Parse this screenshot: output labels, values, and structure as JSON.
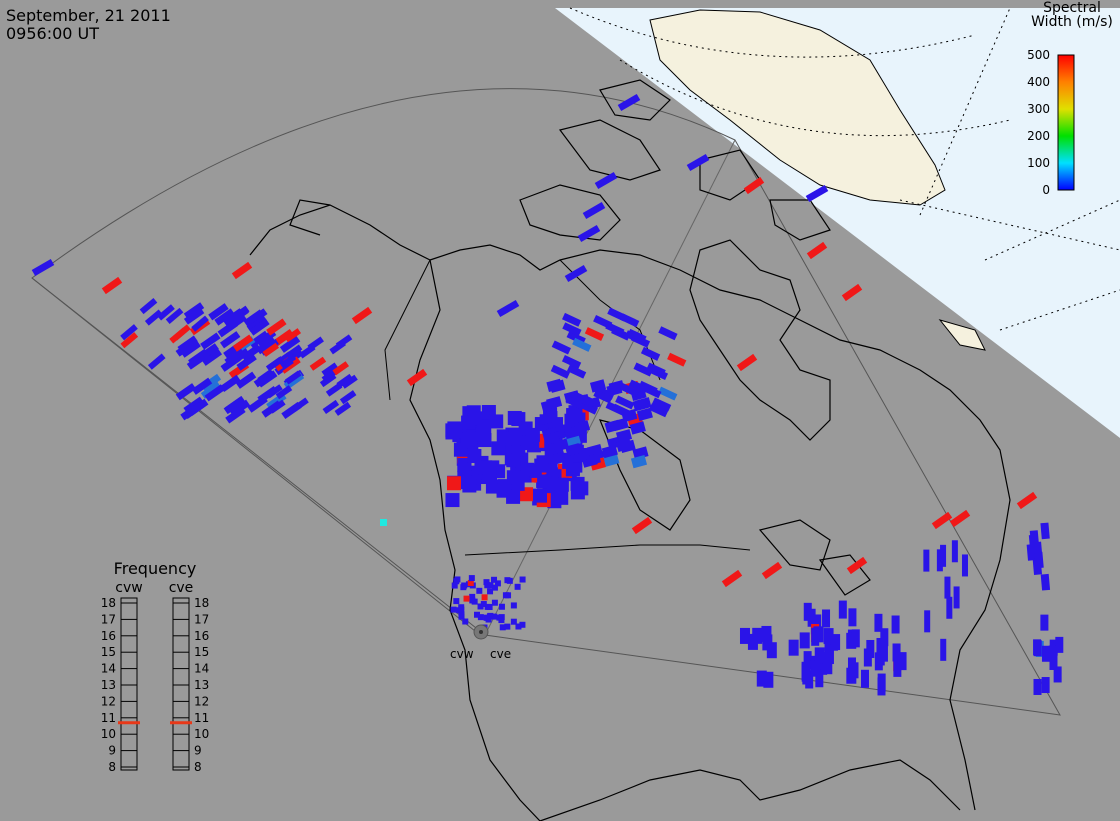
{
  "header": {
    "date": "September, 21 2011",
    "time": "0956:00 UT"
  },
  "colorbar": {
    "title_line1": "Spectral",
    "title_line2": "Width (m/s)",
    "ticks": [
      "500",
      "400",
      "300",
      "200",
      "100",
      "0"
    ]
  },
  "frequency_panel": {
    "title": "Frequency",
    "left_label": "cvw",
    "right_label": "cve",
    "ticks": [
      "18",
      "17",
      "16",
      "15",
      "14",
      "13",
      "12",
      "11",
      "10",
      "9",
      "8"
    ],
    "cvw_value_mhz": 10.7,
    "cve_value_mhz": 10.7
  },
  "radar_sites": {
    "west": "cvw",
    "east": "cve"
  },
  "colors": {
    "background": "#9a9a9a",
    "ocean_day": "#e8f4fc",
    "land_day": "#f5f1de",
    "low_width": "#2a14e8",
    "mid_width": "#2470d8",
    "cyan_width": "#20e8e0",
    "high_width": "#f01818",
    "freq_marker": "#e83818"
  }
}
